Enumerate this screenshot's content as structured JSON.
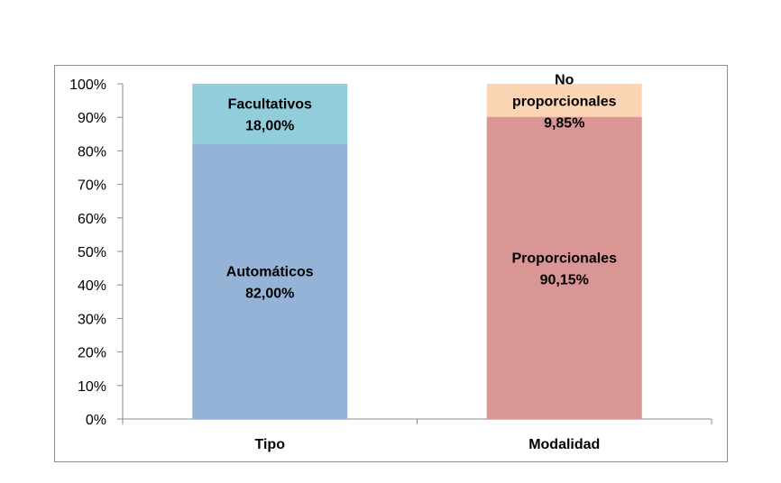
{
  "chart_data": {
    "type": "bar",
    "stacked": true,
    "categories": [
      "Tipo",
      "Modalidad"
    ],
    "ylim": [
      0,
      100
    ],
    "yticks": [
      "0%",
      "10%",
      "20%",
      "30%",
      "40%",
      "50%",
      "60%",
      "70%",
      "80%",
      "90%",
      "100%"
    ],
    "grid": false,
    "legend": "none",
    "bars": [
      {
        "category": "Tipo",
        "segments": [
          {
            "name": "Automáticos",
            "value": 82.0,
            "value_label": "82,00%",
            "color": "#95B3D7"
          },
          {
            "name": "Facultativos",
            "value": 18.0,
            "value_label": "18,00%",
            "color": "#92CDDC"
          }
        ]
      },
      {
        "category": "Modalidad",
        "segments": [
          {
            "name": "Proporcionales",
            "value": 90.15,
            "value_label": "90,15%",
            "color": "#D99694"
          },
          {
            "name": "No proporcionales",
            "value": 9.85,
            "value_label": "9,85%",
            "color": "#FCD5B5",
            "name_lines": [
              "No",
              "proporcionales"
            ]
          }
        ]
      }
    ]
  }
}
